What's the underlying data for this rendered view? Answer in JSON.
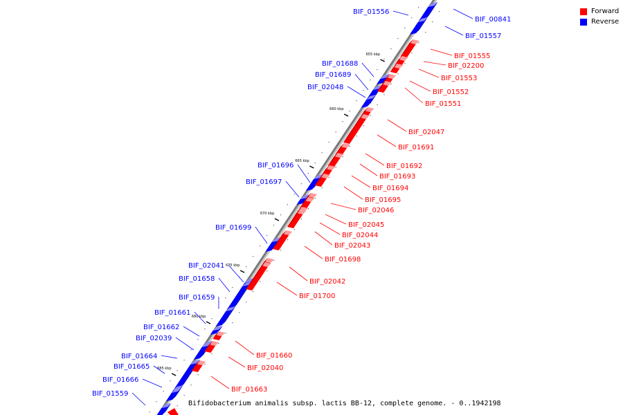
{
  "colors": {
    "forward": "#ff0000",
    "reverse": "#0000ff",
    "axis": "#7a7a7a"
  },
  "legend": {
    "forward_label": "Forward",
    "reverse_label": "Reverse"
  },
  "caption": "Bifidobacterium animalis subsp. lactis BB-12, complete genome. - 0..1942198",
  "ticks": [
    "655 kbp",
    "660 kbp",
    "665 kbp",
    "670 kbp",
    "675 kbp",
    "680 kbp",
    "685 kbp"
  ],
  "reverse_genes": [
    "BIF_00841",
    "BIF_01556",
    "BIF_01557",
    "BIF_01688",
    "BIF_01689",
    "BIF_02048",
    "BIF_01696",
    "BIF_01697",
    "BIF_01699",
    "BIF_02041",
    "BIF_01658",
    "BIF_01659",
    "BIF_01661",
    "BIF_01662",
    "BIF_02039",
    "BIF_01664",
    "BIF_01665",
    "BIF_01666",
    "BIF_01559"
  ],
  "forward_genes": [
    "BIF_01555",
    "BIF_02200",
    "BIF_01553",
    "BIF_01552",
    "BIF_01551",
    "BIF_02047",
    "BIF_01691",
    "BIF_01692",
    "BIF_01693",
    "BIF_01694",
    "BIF_01695",
    "BIF_02046",
    "BIF_02045",
    "BIF_02044",
    "BIF_02043",
    "BIF_01698",
    "BIF_02042",
    "BIF_01700",
    "BIF_01660",
    "BIF_02040",
    "BIF_01663"
  ]
}
